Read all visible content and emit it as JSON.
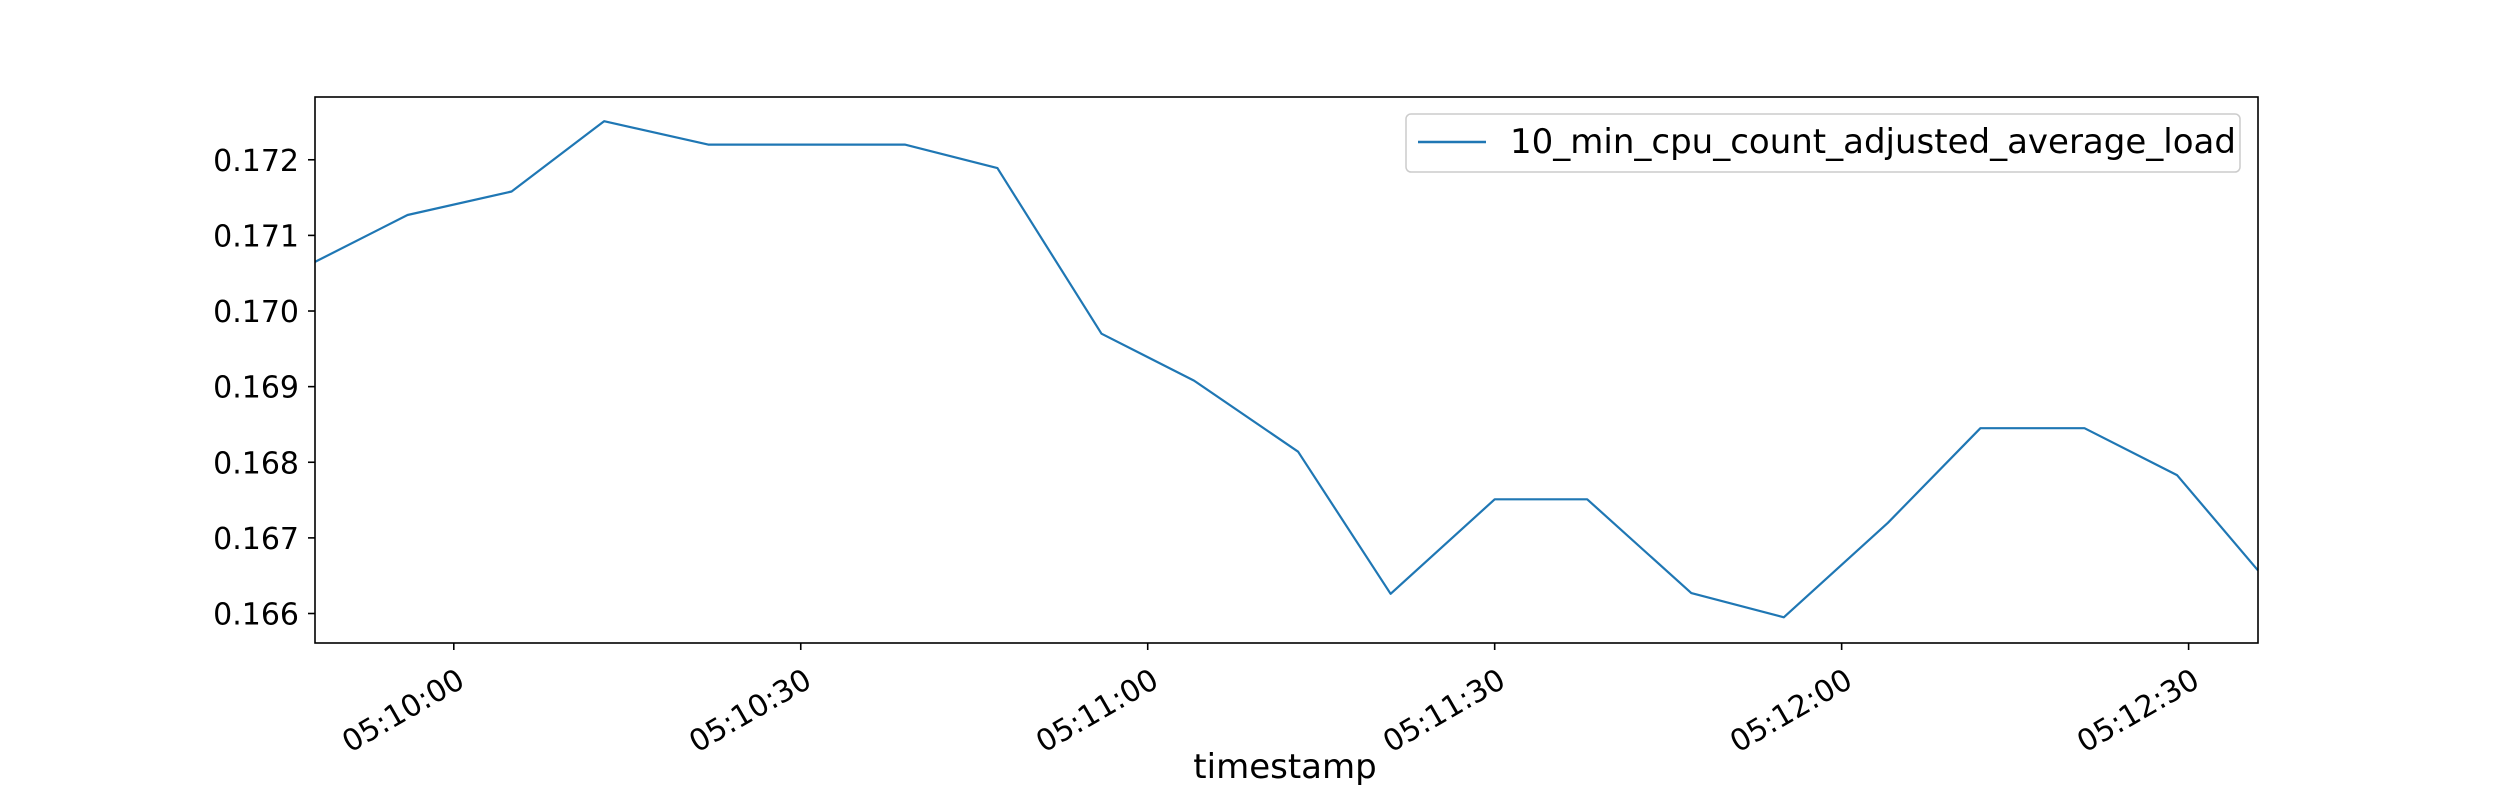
{
  "chart_data": {
    "type": "line",
    "xlabel": "timestamp",
    "ylabel": "",
    "x_tick_labels": [
      "05:10:00",
      "05:10:30",
      "05:11:00",
      "05:11:30",
      "05:12:00",
      "05:12:30"
    ],
    "y_tick_labels": [
      "0.166",
      "0.167",
      "0.168",
      "0.169",
      "0.170",
      "0.171",
      "0.172"
    ],
    "y_ticks": [
      0.166,
      0.167,
      0.168,
      0.169,
      0.17,
      0.171,
      0.172
    ],
    "xlim": [
      "05:09:48",
      "05:12:36"
    ],
    "ylim": [
      0.16561,
      0.17283
    ],
    "grid": false,
    "legend_position": "top-right",
    "series": [
      {
        "name": "10_min_cpu_count_adjusted_average_load",
        "color": "#1f77b4",
        "x": [
          "05:09:48",
          "05:09:56",
          "05:10:05",
          "05:10:13",
          "05:10:22",
          "05:10:30",
          "05:10:39",
          "05:10:47",
          "05:10:56",
          "05:11:04",
          "05:11:13",
          "05:11:21",
          "05:11:30",
          "05:11:38",
          "05:11:47",
          "05:11:55",
          "05:12:04",
          "05:12:12",
          "05:12:21",
          "05:12:29",
          "05:12:36"
        ],
        "values": [
          0.17065,
          0.17127,
          0.17158,
          0.17251,
          0.1722,
          0.1722,
          0.1722,
          0.17189,
          0.1697,
          0.16908,
          0.16814,
          0.16626,
          0.16751,
          0.16751,
          0.16627,
          0.16595,
          0.1672,
          0.16845,
          0.16845,
          0.16783,
          0.16657
        ]
      }
    ]
  }
}
